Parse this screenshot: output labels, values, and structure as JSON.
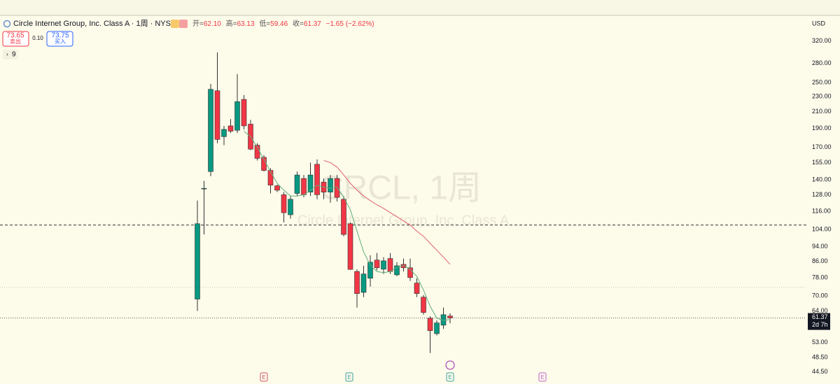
{
  "header": {
    "title": "Circle Internet Group, Inc. Class A · 1周 · NYSE",
    "ohlc": [
      {
        "label": "开=",
        "value": "62.10"
      },
      {
        "label": "高=",
        "value": "63.13"
      },
      {
        "label": "低=",
        "value": "59.46"
      },
      {
        "label": "收=",
        "value": "61.37"
      }
    ],
    "change": "−1.65 (−2.62%)",
    "sell_price": "73.65",
    "sell_label": "卖出",
    "spread": "0.10",
    "buy_price": "73.75",
    "buy_label": "买入",
    "indicator_count": "9",
    "currency": "USD"
  },
  "watermark": {
    "symbol": "CRCL, 1周",
    "name": "Circle Internet Group, Inc. Class A"
  },
  "price_tag": {
    "price": "61.37",
    "countdown": "2d 7h"
  },
  "events": [
    "E",
    "E",
    "E",
    "E"
  ],
  "chart_data": {
    "type": "candlestick",
    "log_scale": true,
    "up_color": "#089981",
    "down_color": "#f23645",
    "open": [
      68.7,
      133,
      147,
      238,
      181,
      193,
      188,
      226,
      195,
      172,
      160,
      148,
      135,
      128,
      113.6,
      129,
      141,
      130,
      153.5,
      138,
      130,
      141,
      124.6,
      107.7,
      81,
      71.5,
      77.8,
      86.7,
      82.1,
      87.5,
      79.4,
      84.5,
      82.8,
      75.6,
      69.5,
      61.3,
      55.9,
      58.8,
      62.1
    ],
    "high": [
      123.6,
      139,
      248,
      299,
      193,
      201,
      263,
      232,
      200,
      174,
      162,
      150,
      136,
      130,
      127,
      147,
      144,
      155,
      158,
      141,
      144,
      144,
      127,
      108.5,
      82,
      83.8,
      89.2,
      90.4,
      88.2,
      90.4,
      85.6,
      87.5,
      87.5,
      77.8,
      70.4,
      62,
      60.5,
      65.3,
      63.13
    ],
    "low": [
      64,
      101,
      143,
      174,
      172,
      185,
      185,
      189,
      167,
      157,
      147,
      129,
      130,
      108.5,
      111,
      127,
      126,
      127,
      124.6,
      124.6,
      122,
      123,
      99.9,
      81.8,
      65.3,
      69.5,
      74,
      81.5,
      79.8,
      79.8,
      78.7,
      81,
      76.5,
      69.5,
      62.6,
      49.8,
      55.3,
      57.5,
      59.46
    ],
    "close": [
      107.7,
      133,
      240,
      178,
      189,
      187,
      223,
      193,
      168,
      159,
      148,
      135.5,
      131.5,
      115,
      124.6,
      144,
      128,
      144,
      128,
      130,
      141,
      126,
      101,
      82,
      71,
      79.8,
      85.6,
      82.8,
      86.3,
      81,
      83.8,
      82.8,
      78.1,
      71,
      63.4,
      56.9,
      59.6,
      62.6,
      61.37
    ],
    "moving_averages": [
      {
        "color": "#5fae7a",
        "values": [
          null,
          null,
          null,
          null,
          null,
          null,
          null,
          187,
          181,
          170,
          158,
          147,
          137,
          131.5,
          127,
          127,
          128,
          131.5,
          135.5,
          134,
          133,
          134,
          126,
          117,
          103,
          91,
          84,
          81,
          80.4,
          81,
          83,
          84,
          82,
          78.7,
          72.5,
          65.8,
          61.3,
          60.5,
          60.8
        ]
      },
      {
        "color": "#e0606e",
        "values": [
          null,
          null,
          null,
          null,
          null,
          null,
          null,
          null,
          null,
          null,
          null,
          null,
          null,
          null,
          null,
          null,
          null,
          null,
          null,
          157,
          155,
          151,
          144,
          137,
          131.5,
          127,
          123.6,
          120.5,
          118,
          115,
          112.3,
          109.5,
          106.8,
          103,
          99.9,
          95.8,
          91.9,
          88.2,
          84.5
        ]
      }
    ],
    "horizontal_lines": [
      {
        "value": 106.8,
        "color": "#333333",
        "dash": "4 3"
      },
      {
        "value": 73.7,
        "color": "#c8c8c8",
        "dash": "1 2"
      }
    ],
    "ylim": [
      41.4,
      373
    ],
    "yticks": [
      {
        "value": 320,
        "label": "320.00"
      },
      {
        "value": 280,
        "label": "280.00"
      },
      {
        "value": 250,
        "label": "250.00"
      },
      {
        "value": 230,
        "label": "230.00"
      },
      {
        "value": 210,
        "label": "210.00"
      },
      {
        "value": 190,
        "label": "190.00"
      },
      {
        "value": 170,
        "label": "170.00"
      },
      {
        "value": 155,
        "label": "155.00"
      },
      {
        "value": 140,
        "label": "140.00"
      },
      {
        "value": 128,
        "label": "128.00"
      },
      {
        "value": 116,
        "label": "116.00"
      },
      {
        "value": 104,
        "label": "104.00"
      },
      {
        "value": 94,
        "label": "94.00"
      },
      {
        "value": 86,
        "label": "86.00"
      },
      {
        "value": 78,
        "label": "78.00"
      },
      {
        "value": 70,
        "label": "70.00"
      },
      {
        "value": 64,
        "label": "64.00"
      },
      {
        "value": 53,
        "label": "53.00"
      },
      {
        "value": 48.5,
        "label": "48.50"
      },
      {
        "value": 44.5,
        "label": "44.50"
      }
    ]
  }
}
